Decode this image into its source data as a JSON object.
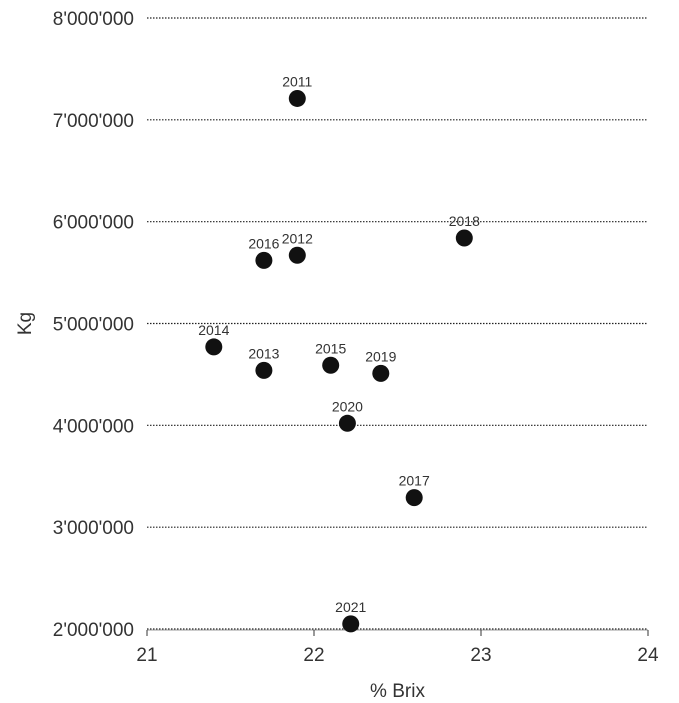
{
  "chart_data": {
    "type": "scatter",
    "title": "",
    "xlabel": "% Brix",
    "ylabel": "Kg",
    "xlim": [
      21,
      24
    ],
    "ylim": [
      2000000,
      8000000
    ],
    "x_ticks": [
      21,
      22,
      23,
      24
    ],
    "x_tick_labels": [
      "21",
      "22",
      "23",
      "24"
    ],
    "y_ticks": [
      2000000,
      3000000,
      4000000,
      5000000,
      6000000,
      7000000,
      8000000
    ],
    "y_tick_labels": [
      "2'000'000",
      "3'000'000",
      "4'000'000",
      "5'000'000",
      "6'000'000",
      "7'000'000",
      "8'000'000"
    ],
    "grid": "horizontal dotted",
    "legend": "none",
    "marker_color": "#111111",
    "points": [
      {
        "label": "2011",
        "x": 21.9,
        "y": 7210000
      },
      {
        "label": "2012",
        "x": 21.9,
        "y": 5670000
      },
      {
        "label": "2013",
        "x": 21.7,
        "y": 4540000
      },
      {
        "label": "2014",
        "x": 21.4,
        "y": 4770000
      },
      {
        "label": "2015",
        "x": 22.1,
        "y": 4590000
      },
      {
        "label": "2016",
        "x": 21.7,
        "y": 5620000
      },
      {
        "label": "2017",
        "x": 22.6,
        "y": 3290000
      },
      {
        "label": "2018",
        "x": 22.9,
        "y": 5840000
      },
      {
        "label": "2019",
        "x": 22.4,
        "y": 4510000
      },
      {
        "label": "2020",
        "x": 22.2,
        "y": 4020000
      },
      {
        "label": "2021",
        "x": 22.22,
        "y": 2050000
      }
    ]
  }
}
